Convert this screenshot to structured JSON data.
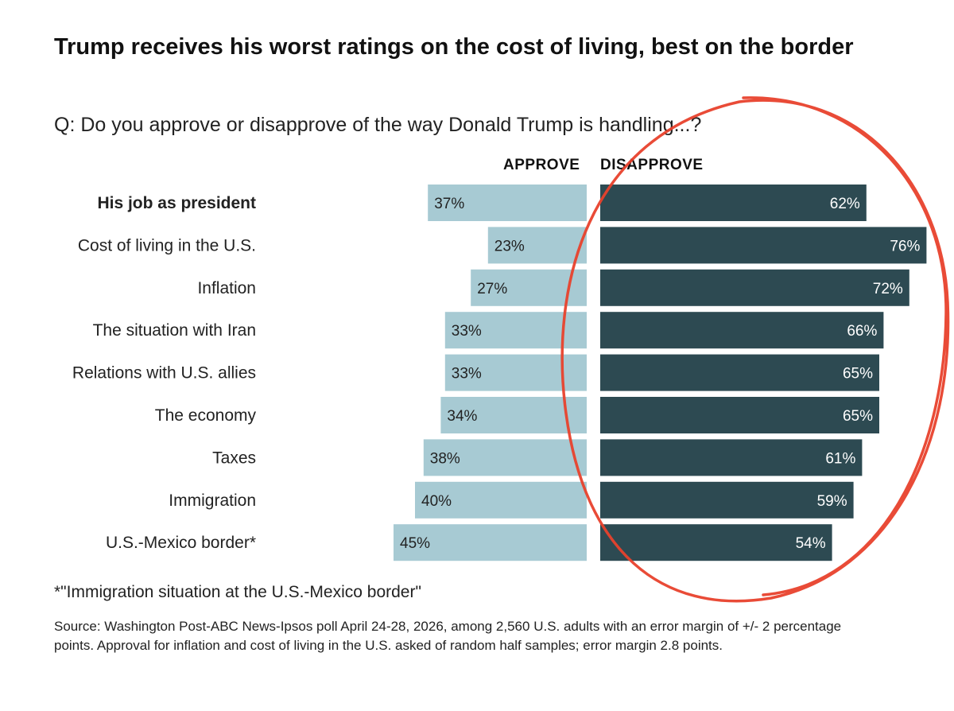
{
  "title": "Trump receives his worst ratings on the cost of living, best on the border",
  "question": "Q: Do you approve or disapprove of the way Donald Trump is handling...?",
  "chart_data": {
    "type": "bar",
    "orientation": "diverging-horizontal",
    "categories": [
      "His job as president",
      "Cost of living in the U.S.",
      "Inflation",
      "The situation with Iran",
      "Relations with U.S. allies",
      "The economy",
      "Taxes",
      "Immigration",
      "U.S.-Mexico border*"
    ],
    "bold_categories": [
      "His job as president"
    ],
    "series": [
      {
        "name": "APPROVE",
        "values": [
          37,
          23,
          27,
          33,
          33,
          34,
          38,
          40,
          45
        ],
        "color": "#a7cad3",
        "label_color": "#222222"
      },
      {
        "name": "DISAPPROVE",
        "values": [
          62,
          76,
          72,
          66,
          65,
          65,
          61,
          59,
          54
        ],
        "color": "#2d4a52",
        "label_color": "#ffffff"
      }
    ],
    "value_suffix": "%",
    "xlim": [
      0,
      100
    ]
  },
  "annotation": {
    "type": "hand-drawn-circle",
    "color": "#e8412c",
    "around": "DISAPPROVE"
  },
  "footnote": "*\"Immigration situation at the U.S.-Mexico border\"",
  "source": "Source: Washington Post-ABC News-Ipsos poll April 24-28, 2026, among 2,560 U.S. adults with an error margin of +/- 2 percentage points. Approval for inflation and cost of living in the U.S. asked of random half samples; error margin 2.8 points."
}
